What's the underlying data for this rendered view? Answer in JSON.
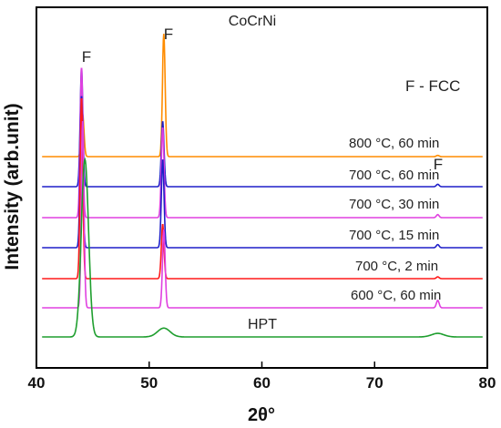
{
  "chart_data": {
    "type": "line",
    "title": "CoCrNi",
    "xlabel": "2θ°",
    "ylabel": "Intensity (arb.unit)",
    "xlim": [
      40,
      80
    ],
    "xticks": [
      "40",
      "50",
      "60",
      "70",
      "80"
    ],
    "yticks": [],
    "grid": false,
    "legend_note": "F - FCC",
    "peak_marker": "F",
    "series": [
      {
        "name": "800 °C, 60 min",
        "color": "#ff8c00",
        "peaks": [
          {
            "x": 44.1,
            "h": 0.35
          },
          {
            "x": 51.3,
            "h": 1.0
          },
          {
            "x": 75.6,
            "h": 0.01
          }
        ]
      },
      {
        "name": "700 °C, 60 min",
        "color": "#1f1fc8",
        "peaks": [
          {
            "x": 44.0,
            "h": 1.0
          },
          {
            "x": 51.2,
            "h": 0.55
          },
          {
            "x": 75.6,
            "h": 0.02
          }
        ]
      },
      {
        "name": "700 °C, 30 min",
        "color": "#e040e0",
        "peaks": [
          {
            "x": 44.0,
            "h": 1.0
          },
          {
            "x": 51.2,
            "h": 0.6
          },
          {
            "x": 75.6,
            "h": 0.02
          }
        ]
      },
      {
        "name": "700 °C, 15 min",
        "color": "#1f1fc8",
        "peaks": [
          {
            "x": 44.0,
            "h": 1.0
          },
          {
            "x": 51.2,
            "h": 0.58
          },
          {
            "x": 75.6,
            "h": 0.02
          }
        ]
      },
      {
        "name": "700 °C, 2 min",
        "color": "#ff1a1a",
        "peaks": [
          {
            "x": 44.0,
            "h": 1.0
          },
          {
            "x": 51.2,
            "h": 0.3
          },
          {
            "x": 75.6,
            "h": 0.01
          }
        ]
      },
      {
        "name": "600 °C, 60 min",
        "color": "#e040e0",
        "peaks": [
          {
            "x": 44.1,
            "h": 1.0
          },
          {
            "x": 51.3,
            "h": 0.42
          },
          {
            "x": 75.6,
            "h": 0.04
          }
        ]
      },
      {
        "name": "HPT",
        "color": "#1e9e2e",
        "peaks": [
          {
            "x": 44.3,
            "h": 1.0
          },
          {
            "x": 51.3,
            "h": 0.05
          },
          {
            "x": 75.6,
            "h": 0.02
          }
        ]
      }
    ]
  }
}
